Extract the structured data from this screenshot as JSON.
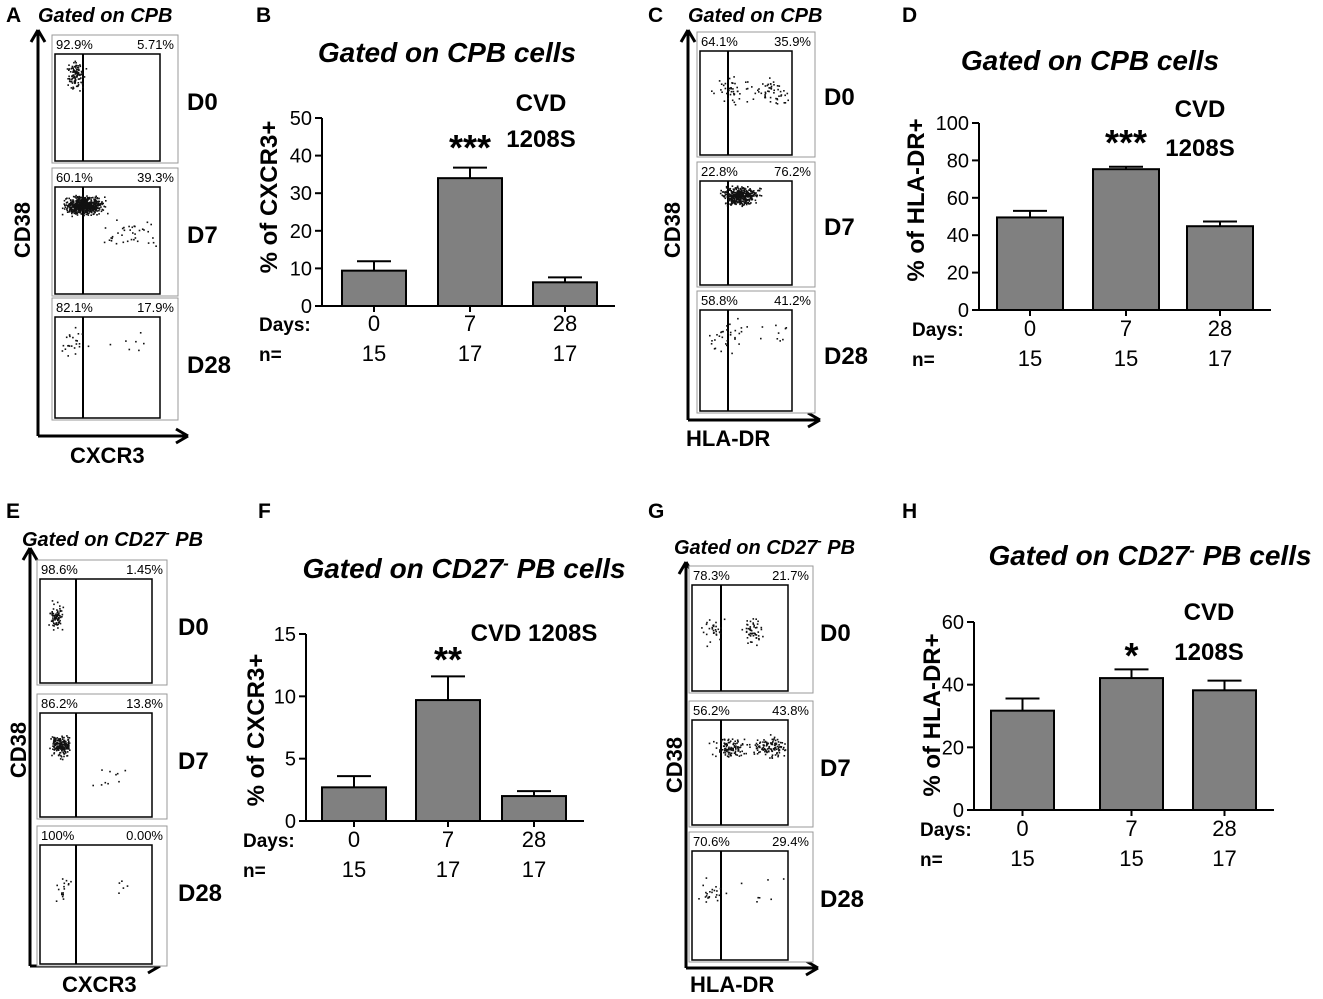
{
  "panel_labels": [
    "A",
    "B",
    "C",
    "D",
    "E",
    "F",
    "G",
    "H"
  ],
  "flow_panels": [
    {
      "letter": "A",
      "gate_main": "Gated on CPB",
      "gate_sup": "",
      "gate_tail": "",
      "x_axis": "CXCR3",
      "y_axis": "CD38",
      "plots": [
        {
          "day": "D0",
          "left_pct": "92.9%",
          "right_pct": "5.71%"
        },
        {
          "day": "D7",
          "left_pct": "60.1%",
          "right_pct": "39.3%"
        },
        {
          "day": "D28",
          "left_pct": "82.1%",
          "right_pct": "17.9%"
        }
      ]
    },
    {
      "letter": "C",
      "gate_main": "Gated on CPB",
      "gate_sup": "",
      "gate_tail": "",
      "x_axis": "HLA-DR",
      "y_axis": "CD38",
      "plots": [
        {
          "day": "D0",
          "left_pct": "64.1%",
          "right_pct": "35.9%"
        },
        {
          "day": "D7",
          "left_pct": "22.8%",
          "right_pct": "76.2%"
        },
        {
          "day": "D28",
          "left_pct": "58.8%",
          "right_pct": "41.2%"
        }
      ]
    },
    {
      "letter": "E",
      "gate_main": "Gated on CD27",
      "gate_sup": "-",
      "gate_tail": " PB",
      "x_axis": "CXCR3",
      "y_axis": "CD38",
      "plots": [
        {
          "day": "D0",
          "left_pct": "98.6%",
          "right_pct": "1.45%"
        },
        {
          "day": "D7",
          "left_pct": "86.2%",
          "right_pct": "13.8%"
        },
        {
          "day": "D28",
          "left_pct": "100%",
          "right_pct": "0.00%"
        }
      ]
    },
    {
      "letter": "G",
      "gate_main": "Gated on CD27",
      "gate_sup": "-",
      "gate_tail": " PB",
      "x_axis": "HLA-DR",
      "y_axis": "CD38",
      "plots": [
        {
          "day": "D0",
          "left_pct": "78.3%",
          "right_pct": "21.7%"
        },
        {
          "day": "D7",
          "left_pct": "56.2%",
          "right_pct": "43.8%"
        },
        {
          "day": "D28",
          "left_pct": "70.6%",
          "right_pct": "29.4%"
        }
      ]
    }
  ],
  "bar_style": {
    "fill": "#808080",
    "stroke": "#000000"
  },
  "chart_data": [
    {
      "panel": "B",
      "type": "bar",
      "title": "Gated on CPB cells",
      "title_sup": "",
      "title_tail": "",
      "vaccine": [
        "CVD",
        "1208S"
      ],
      "ylabel": "% of CXCR3+",
      "ylim": [
        0,
        50
      ],
      "yticks": [
        0,
        10,
        20,
        30,
        40,
        50
      ],
      "row_labels": {
        "days": "Days:",
        "n": "n="
      },
      "categories": [
        "0",
        "7",
        "28"
      ],
      "n": [
        "15",
        "17",
        "17"
      ],
      "values": [
        9.4,
        34.0,
        6.3
      ],
      "errors": [
        2.5,
        2.8,
        1.3
      ],
      "significance": [
        "",
        "***",
        ""
      ]
    },
    {
      "panel": "D",
      "type": "bar",
      "title": "Gated on CPB cells",
      "title_sup": "",
      "title_tail": "",
      "vaccine": [
        "CVD",
        "1208S"
      ],
      "ylabel": "% of HLA-DR+",
      "ylim": [
        0,
        100
      ],
      "yticks": [
        0,
        20,
        40,
        60,
        80,
        100
      ],
      "row_labels": {
        "days": "Days:",
        "n": "n="
      },
      "categories": [
        "0",
        "7",
        "28"
      ],
      "n": [
        "15",
        "15",
        "17"
      ],
      "values": [
        49.5,
        75.3,
        44.8
      ],
      "errors": [
        3.5,
        1.3,
        2.5
      ],
      "significance": [
        "",
        "***",
        ""
      ]
    },
    {
      "panel": "F",
      "type": "bar",
      "title": "Gated on CD27",
      "title_sup": "-",
      "title_tail": " PB cells",
      "vaccine": [
        "CVD 1208S"
      ],
      "ylabel": "% of CXCR3+",
      "ylim": [
        0,
        15
      ],
      "yticks": [
        0,
        5,
        10,
        15
      ],
      "row_labels": {
        "days": "Days:",
        "n": "n="
      },
      "categories": [
        "0",
        "7",
        "28"
      ],
      "n": [
        "15",
        "17",
        "17"
      ],
      "values": [
        2.7,
        9.7,
        2.0
      ],
      "errors": [
        0.9,
        1.9,
        0.4
      ],
      "significance": [
        "",
        "**",
        ""
      ]
    },
    {
      "panel": "H",
      "type": "bar",
      "title": "Gated on CD27",
      "title_sup": "-",
      "title_tail": " PB cells",
      "vaccine": [
        "CVD",
        "1208S"
      ],
      "ylabel": "% of HLA-DR+",
      "ylim": [
        0,
        60
      ],
      "yticks": [
        0,
        20,
        40,
        60
      ],
      "row_labels": {
        "days": "Days:",
        "n": "n="
      },
      "categories": [
        "0",
        "7",
        "28"
      ],
      "n": [
        "15",
        "15",
        "17"
      ],
      "values": [
        31.7,
        42.1,
        38.2
      ],
      "errors": [
        3.9,
        2.8,
        3.1
      ],
      "significance": [
        "",
        "*",
        ""
      ]
    }
  ]
}
